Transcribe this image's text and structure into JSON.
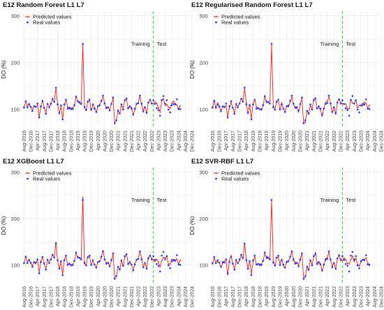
{
  "figure": {
    "x_ticks": [
      "Aug-2016",
      "Dec-2016",
      "Apr-2017",
      "Aug-2017",
      "Dec-2017",
      "Apr-2018",
      "Aug-2018",
      "Dec-2018",
      "Apr-2019",
      "Aug-2019",
      "Dec-2019",
      "Apr-2020",
      "Aug-2020",
      "Dec-2020",
      "Apr-2021",
      "Aug-2021",
      "Dec-2021",
      "Apr-2022",
      "Aug-2022",
      "Dec-2022",
      "Apr-2023",
      "Aug-2023",
      "Dec-2023",
      "Apr-2024",
      "Aug-2024",
      "Dec-2024"
    ],
    "colors": {
      "predicted": "#ff1a1a",
      "real": "#1f3bff",
      "split": "#33dd33",
      "grid": "#ebebeb"
    }
  },
  "chart_data": [
    {
      "type": "line",
      "title": "E12 Random Forest L1 L7",
      "ylabel": "DO (%)",
      "xlabel": "",
      "ylim": [
        60,
        310
      ],
      "yticks": [
        100,
        200,
        300
      ],
      "x_range": [
        "2016-07",
        "2024-12"
      ],
      "split_date": "2023-01",
      "split_labels": [
        "Training",
        "Test"
      ],
      "legend": "top-left",
      "series": [
        {
          "name": "Predicted values",
          "style": "line with points",
          "values": []
        },
        {
          "name": "Real values",
          "style": "points",
          "values": []
        }
      ]
    },
    {
      "type": "line",
      "title": "E12 Regularised Random Forest L1 L7",
      "ylabel": "DO (%)",
      "xlabel": "",
      "ylim": [
        60,
        310
      ],
      "yticks": [
        100,
        200,
        300
      ],
      "x_range": [
        "2016-07",
        "2024-12"
      ],
      "split_date": "2023-01",
      "split_labels": [
        "Training",
        "Test"
      ],
      "legend": "top-left",
      "series": [
        {
          "name": "Predicted values",
          "style": "line with points",
          "values": []
        },
        {
          "name": "Real values",
          "style": "points",
          "values": []
        }
      ]
    },
    {
      "type": "line",
      "title": "E12 XGBoost L1 L7",
      "ylabel": "DO (%)",
      "xlabel": "",
      "ylim": [
        60,
        310
      ],
      "yticks": [
        100,
        200,
        300
      ],
      "x_range": [
        "2016-07",
        "2024-12"
      ],
      "split_date": "2023-01",
      "split_labels": [
        "Training",
        "Test"
      ],
      "legend": "top-left",
      "series": [
        {
          "name": "Predicted values",
          "style": "line with points",
          "values": []
        },
        {
          "name": "Real values",
          "style": "points",
          "values": []
        }
      ]
    },
    {
      "type": "line",
      "title": "E12 SVR-RBF L1 L7",
      "ylabel": "DO (%)",
      "xlabel": "",
      "ylim": [
        60,
        310
      ],
      "yticks": [
        100,
        200,
        300
      ],
      "x_range": [
        "2016-07",
        "2024-12"
      ],
      "split_date": "2023-01",
      "split_labels": [
        "Training",
        "Test"
      ],
      "legend": "top-left",
      "series": [
        {
          "name": "Predicted values",
          "style": "line with points",
          "values": []
        },
        {
          "name": "Real values",
          "style": "points",
          "values": []
        }
      ]
    }
  ]
}
